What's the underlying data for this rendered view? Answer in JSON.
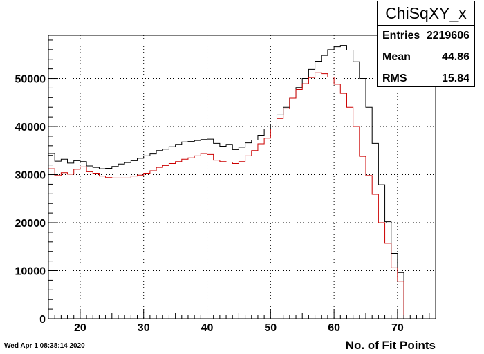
{
  "chart_data": {
    "type": "histogram",
    "title": "",
    "xlabel": "No. of Fit Points",
    "ylabel": "",
    "xlim": [
      15,
      76
    ],
    "ylim": [
      0,
      59000
    ],
    "grid": true,
    "x_ticks": [
      20,
      30,
      40,
      50,
      60,
      70
    ],
    "y_ticks": [
      0,
      10000,
      20000,
      30000,
      40000,
      50000
    ],
    "bin_start": 15,
    "bin_width": 1,
    "series": [
      {
        "color": "#000000",
        "values": [
          34400,
          32800,
          33200,
          32400,
          32900,
          32700,
          31800,
          31500,
          31200,
          31300,
          31700,
          32200,
          32500,
          32900,
          33400,
          33900,
          34300,
          35000,
          35300,
          35800,
          36300,
          36800,
          36900,
          37100,
          37300,
          37400,
          36500,
          35900,
          36300,
          35200,
          35700,
          36600,
          37200,
          38200,
          39500,
          40500,
          42400,
          44000,
          45900,
          48100,
          50000,
          51900,
          53600,
          54800,
          56000,
          56600,
          56900,
          55900,
          53500,
          50000,
          44000,
          36500,
          27900,
          20200,
          13600,
          9600,
          0
        ]
      },
      {
        "color": "#cc0000",
        "values": [
          31200,
          29800,
          30400,
          30100,
          31100,
          31600,
          30600,
          30300,
          29700,
          29400,
          29300,
          29300,
          29300,
          29700,
          29900,
          30300,
          30800,
          31500,
          31900,
          32300,
          32700,
          33200,
          33500,
          33900,
          34400,
          34200,
          33000,
          32700,
          32600,
          32300,
          32700,
          33900,
          35000,
          36400,
          37600,
          39500,
          41700,
          43700,
          45900,
          47700,
          48900,
          50200,
          51200,
          51000,
          50300,
          48800,
          46900,
          44000,
          40000,
          33800,
          29800,
          25900,
          20000,
          15700,
          10600,
          7800,
          0
        ]
      }
    ],
    "stats": {
      "name": "ChiSqXY_x",
      "rows": [
        {
          "label": "Entries",
          "value": "2219606"
        },
        {
          "label": "Mean",
          "value": "44.86"
        },
        {
          "label": "RMS",
          "value": "15.84"
        }
      ]
    },
    "timestamp": "Wed Apr  1 08:38:14 2020"
  }
}
